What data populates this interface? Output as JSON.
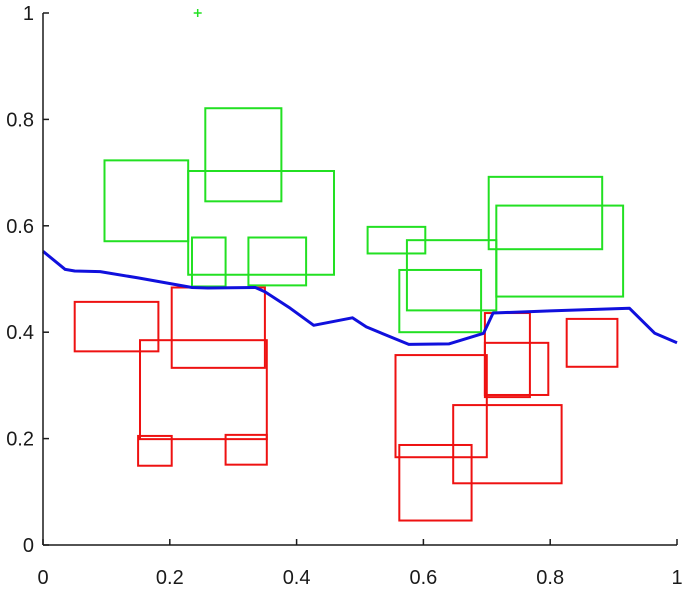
{
  "chart_data": {
    "type": "scatter",
    "title": "",
    "xlabel": "",
    "ylabel": "",
    "xlim": [
      0,
      1
    ],
    "ylim": [
      0,
      1
    ],
    "x_ticks": [
      "0",
      "0.2",
      "0.4",
      "0.6",
      "0.8",
      "1"
    ],
    "y_ticks": [
      "0",
      "0.2",
      "0.4",
      "0.6",
      "0.8",
      "1"
    ],
    "grid": false,
    "legend": "none",
    "colors": {
      "green": "#22e022",
      "red": "#ee1111",
      "line": "#1010dd",
      "axis": "#1a1a1a"
    },
    "green_boxes": [
      {
        "x0": 0.097,
        "y0": 0.571,
        "x1": 0.229,
        "y1": 0.723
      },
      {
        "x0": 0.256,
        "y0": 0.646,
        "x1": 0.376,
        "y1": 0.821
      },
      {
        "x0": 0.229,
        "y0": 0.508,
        "x1": 0.459,
        "y1": 0.703
      },
      {
        "x0": 0.235,
        "y0": 0.486,
        "x1": 0.288,
        "y1": 0.578
      },
      {
        "x0": 0.324,
        "y0": 0.488,
        "x1": 0.415,
        "y1": 0.578
      },
      {
        "x0": 0.512,
        "y0": 0.548,
        "x1": 0.603,
        "y1": 0.598
      },
      {
        "x0": 0.574,
        "y0": 0.441,
        "x1": 0.715,
        "y1": 0.573
      },
      {
        "x0": 0.562,
        "y0": 0.4,
        "x1": 0.691,
        "y1": 0.517
      },
      {
        "x0": 0.703,
        "y0": 0.556,
        "x1": 0.882,
        "y1": 0.692
      },
      {
        "x0": 0.715,
        "y0": 0.467,
        "x1": 0.915,
        "y1": 0.638
      }
    ],
    "green_marker": {
      "x": 0.244,
      "y": 1.0
    },
    "red_boxes": [
      {
        "x0": 0.05,
        "y0": 0.364,
        "x1": 0.182,
        "y1": 0.457
      },
      {
        "x0": 0.203,
        "y0": 0.333,
        "x1": 0.35,
        "y1": 0.484
      },
      {
        "x0": 0.153,
        "y0": 0.199,
        "x1": 0.353,
        "y1": 0.385
      },
      {
        "x0": 0.15,
        "y0": 0.149,
        "x1": 0.203,
        "y1": 0.205
      },
      {
        "x0": 0.288,
        "y0": 0.151,
        "x1": 0.353,
        "y1": 0.207
      },
      {
        "x0": 0.556,
        "y0": 0.165,
        "x1": 0.7,
        "y1": 0.357
      },
      {
        "x0": 0.562,
        "y0": 0.046,
        "x1": 0.676,
        "y1": 0.188
      },
      {
        "x0": 0.697,
        "y0": 0.278,
        "x1": 0.768,
        "y1": 0.436
      },
      {
        "x0": 0.697,
        "y0": 0.282,
        "x1": 0.797,
        "y1": 0.38
      },
      {
        "x0": 0.647,
        "y0": 0.116,
        "x1": 0.818,
        "y1": 0.263
      },
      {
        "x0": 0.826,
        "y0": 0.335,
        "x1": 0.906,
        "y1": 0.425
      }
    ],
    "line": {
      "x": [
        0.0,
        0.035,
        0.05,
        0.09,
        0.15,
        0.235,
        0.26,
        0.335,
        0.35,
        0.39,
        0.427,
        0.488,
        0.51,
        0.577,
        0.64,
        0.695,
        0.71,
        0.8,
        0.925,
        0.965,
        1.0
      ],
      "y": [
        0.552,
        0.518,
        0.515,
        0.514,
        0.502,
        0.484,
        0.483,
        0.484,
        0.476,
        0.445,
        0.413,
        0.427,
        0.41,
        0.377,
        0.378,
        0.398,
        0.436,
        0.44,
        0.445,
        0.398,
        0.38
      ]
    }
  }
}
